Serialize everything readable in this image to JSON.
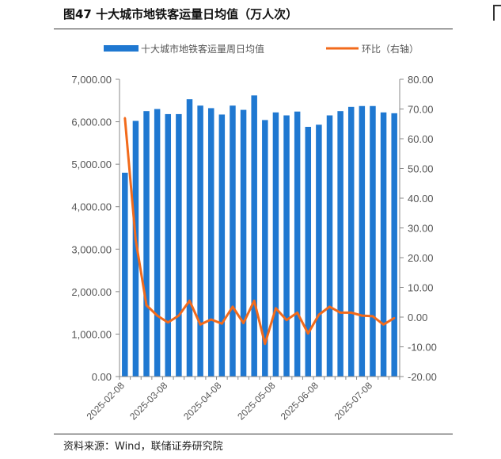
{
  "page": {
    "figure_title": "图47 十大城市地铁客运量日均值（万人次）",
    "source": "资料来源：Wind，联储证券研究院"
  },
  "colors": {
    "bar": "#1f78d1",
    "line": "#f26a1b",
    "axis": "#888888",
    "text": "#555555"
  },
  "chart_data": {
    "type": "bar",
    "title": "",
    "legend_position": "top",
    "grid": false,
    "x_tick_labels": [
      "2025-02-08",
      "2025-03-08",
      "2025-04-08",
      "2025-05-08",
      "2025-06-08",
      "2025-07-08"
    ],
    "x_tick_indices": [
      0,
      4,
      9,
      14,
      18,
      23
    ],
    "y_left": {
      "range": [
        0,
        7000
      ],
      "ticks": [
        "0.00",
        "1,000.00",
        "2,000.00",
        "3,000.00",
        "4,000.00",
        "5,000.00",
        "6,000.00",
        "7,000.00"
      ]
    },
    "y_right": {
      "range": [
        -20,
        80
      ],
      "ticks": [
        "-20.00",
        "-10.00",
        "0.00",
        "10.00",
        "20.00",
        "30.00",
        "40.00",
        "50.00",
        "60.00",
        "70.00",
        "80.00"
      ]
    },
    "series": [
      {
        "name": "十大城市地铁客运量周日均值",
        "type": "bar",
        "axis": "left",
        "values": [
          4800,
          6020,
          6250,
          6300,
          6180,
          6180,
          6530,
          6380,
          6320,
          6170,
          6380,
          6280,
          6620,
          6040,
          6220,
          6150,
          6240,
          5880,
          5930,
          6150,
          6250,
          6350,
          6370,
          6370,
          6220,
          6200
        ]
      },
      {
        "name": "环比（右轴）",
        "type": "line",
        "axis": "right",
        "values": [
          67,
          26,
          4,
          0.5,
          -1.8,
          0.5,
          5.5,
          -2.5,
          -0.8,
          -2.2,
          3.5,
          -2,
          5.5,
          -9,
          3,
          -1,
          1.5,
          -5.5,
          0.8,
          3.5,
          1.5,
          1.5,
          0.5,
          0.3,
          -2.5,
          -0.3
        ]
      }
    ]
  }
}
